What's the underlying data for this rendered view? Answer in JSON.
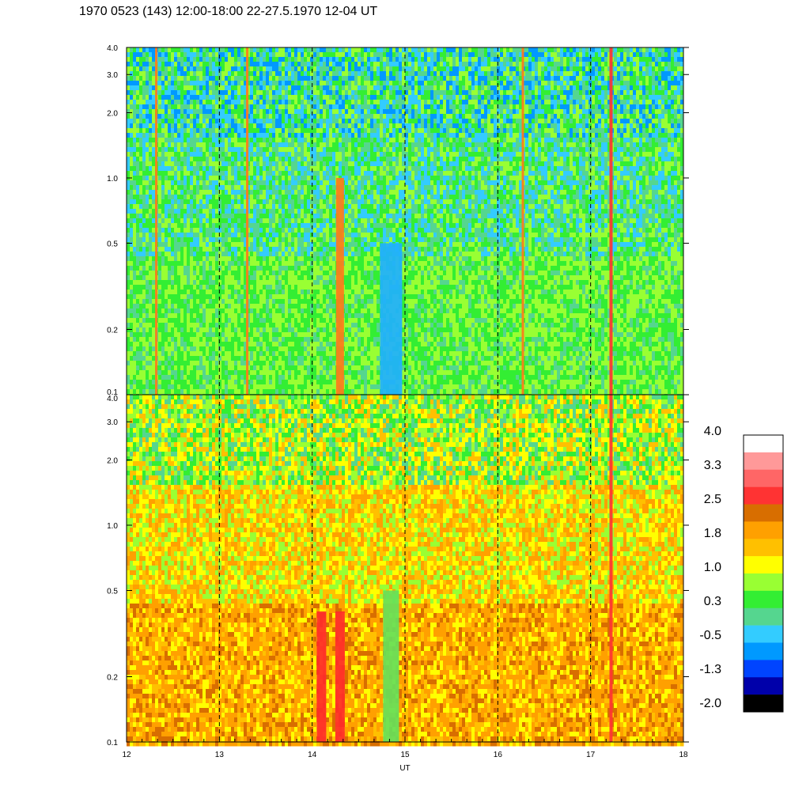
{
  "title": "1970 0523 (143) 12:00-18:00 22-27.5.1970  12-04 UT",
  "chart_data": {
    "type": "heatmap",
    "xlabel": "UT",
    "x_ticks": [
      "12",
      "13",
      "14",
      "15",
      "16",
      "17",
      "18"
    ],
    "xlim": [
      12,
      18
    ],
    "dashed_hour_lines": [
      13,
      14,
      15,
      16,
      17
    ],
    "panels": [
      {
        "name": "upper",
        "y_scale": "log",
        "ylim": [
          0.1,
          4.0
        ],
        "y_ticks": [
          "0.1",
          "0.2",
          "0.5",
          "1.0",
          "2.0",
          "3.0",
          "4.0"
        ],
        "dominant_colors": [
          "#33ee33",
          "#99ff33",
          "#55d68f",
          "#1fc8ff",
          "#0099ff",
          "#ffff00"
        ],
        "features": [
          {
            "x": 12.32,
            "kind": "narrow-orange-stripe"
          },
          {
            "x": 13.3,
            "kind": "narrow-orange-stripe"
          },
          {
            "x": 14.3,
            "kind": "orange-band"
          },
          {
            "x": 14.85,
            "kind": "blue-band"
          },
          {
            "x": 16.27,
            "kind": "narrow-orange-stripe"
          },
          {
            "x": 17.22,
            "kind": "red-stripe"
          }
        ]
      },
      {
        "name": "lower",
        "y_scale": "log",
        "ylim": [
          0.1,
          4.0
        ],
        "y_ticks": [
          "0.1",
          "0.2",
          "0.5",
          "1.0",
          "2.0",
          "3.0",
          "4.0"
        ],
        "dominant_colors": [
          "#ffa000",
          "#ffc000",
          "#ffff00",
          "#99ff33",
          "#33ee33",
          "#d86e00"
        ],
        "features": [
          {
            "x": 14.1,
            "kind": "red-band"
          },
          {
            "x": 14.3,
            "kind": "red-band"
          },
          {
            "x": 14.85,
            "kind": "green-band"
          },
          {
            "x": 17.22,
            "kind": "red-stripe"
          }
        ]
      }
    ],
    "colorbar": {
      "labels": [
        "4.0",
        "3.3",
        "2.5",
        "1.8",
        "1.0",
        "0.3",
        "-0.5",
        "-1.3",
        "-2.0"
      ],
      "colors": [
        "#ffffff",
        "#ff9999",
        "#ff6666",
        "#ff3333",
        "#d86e00",
        "#ffa000",
        "#ffc000",
        "#ffff00",
        "#99ff33",
        "#33ee33",
        "#55d68f",
        "#33ccff",
        "#0099ff",
        "#0044ff",
        "#0000aa",
        "#000000"
      ]
    }
  }
}
